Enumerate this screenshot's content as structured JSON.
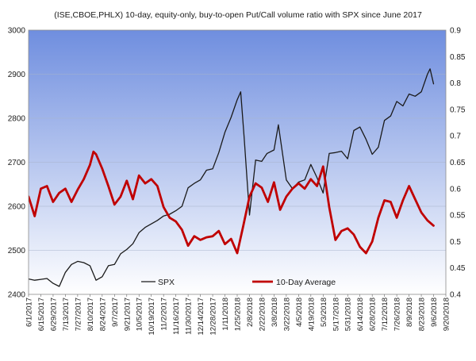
{
  "chart_data": {
    "type": "line",
    "title": "(ISE,CBOE,PHLX)  10-day, equity-only,  buy-to-open  Put/Call volume ratio with SPX since June 2017",
    "xlabel": "",
    "ylabel_left": "",
    "ylabel_right": "",
    "x_ticks": [
      "6/1/2017",
      "6/15/2017",
      "6/29/2017",
      "7/13/2017",
      "7/27/2017",
      "8/10/2017",
      "8/24/2017",
      "9/7/2017",
      "9/21/2017",
      "10/5/2017",
      "10/19/2017",
      "11/2/2017",
      "11/16/2017",
      "11/30/2017",
      "12/14/2017",
      "12/28/2017",
      "1/11/2018",
      "1/25/2018",
      "2/8/2018",
      "2/22/2018",
      "3/8/2018",
      "3/22/2018",
      "4/5/2018",
      "4/19/2018",
      "5/3/2018",
      "5/17/2018",
      "5/31/2018",
      "6/14/2018",
      "6/28/2018",
      "7/12/2018",
      "7/26/2018",
      "8/9/2018",
      "8/23/2018",
      "9/6/2018",
      "9/20/2018"
    ],
    "x_range": [
      "2017-06-01",
      "2018-09-20"
    ],
    "y_left_ticks": [
      2400,
      2500,
      2600,
      2700,
      2800,
      2900,
      3000
    ],
    "y_left_range": [
      2400,
      3000
    ],
    "y_right_ticks": [
      "0.4",
      "0.45",
      "0.5",
      "0.55",
      "0.6",
      "0.65",
      "0.7",
      "0.75",
      "0.8",
      "0.85",
      "0.9"
    ],
    "y_right_range": [
      0.4,
      0.9
    ],
    "grid": true,
    "legend_position": "bottom-center",
    "series": [
      {
        "name": "SPX",
        "axis": "left",
        "color": "#1a1a1a",
        "points": [
          [
            "2017-06-01",
            2435
          ],
          [
            "2017-06-08",
            2432
          ],
          [
            "2017-06-15",
            2434
          ],
          [
            "2017-06-22",
            2436
          ],
          [
            "2017-06-29",
            2425
          ],
          [
            "2017-07-06",
            2418
          ],
          [
            "2017-07-13",
            2450
          ],
          [
            "2017-07-20",
            2468
          ],
          [
            "2017-07-27",
            2475
          ],
          [
            "2017-08-03",
            2472
          ],
          [
            "2017-08-10",
            2465
          ],
          [
            "2017-08-17",
            2432
          ],
          [
            "2017-08-24",
            2440
          ],
          [
            "2017-08-31",
            2465
          ],
          [
            "2017-09-07",
            2468
          ],
          [
            "2017-09-14",
            2492
          ],
          [
            "2017-09-21",
            2502
          ],
          [
            "2017-09-28",
            2515
          ],
          [
            "2017-10-05",
            2540
          ],
          [
            "2017-10-12",
            2552
          ],
          [
            "2017-10-19",
            2560
          ],
          [
            "2017-10-26",
            2568
          ],
          [
            "2017-11-02",
            2578
          ],
          [
            "2017-11-09",
            2582
          ],
          [
            "2017-11-16",
            2590
          ],
          [
            "2017-11-23",
            2600
          ],
          [
            "2017-11-30",
            2642
          ],
          [
            "2017-12-07",
            2652
          ],
          [
            "2017-12-14",
            2660
          ],
          [
            "2017-12-21",
            2682
          ],
          [
            "2017-12-28",
            2685
          ],
          [
            "2018-01-04",
            2722
          ],
          [
            "2018-01-11",
            2768
          ],
          [
            "2018-01-18",
            2802
          ],
          [
            "2018-01-25",
            2842
          ],
          [
            "2018-01-29",
            2860
          ],
          [
            "2018-02-02",
            2755
          ],
          [
            "2018-02-08",
            2580
          ],
          [
            "2018-02-15",
            2705
          ],
          [
            "2018-02-22",
            2702
          ],
          [
            "2018-02-28",
            2720
          ],
          [
            "2018-03-08",
            2728
          ],
          [
            "2018-03-13",
            2785
          ],
          [
            "2018-03-22",
            2660
          ],
          [
            "2018-03-29",
            2640
          ],
          [
            "2018-04-05",
            2655
          ],
          [
            "2018-04-12",
            2660
          ],
          [
            "2018-04-19",
            2695
          ],
          [
            "2018-04-26",
            2665
          ],
          [
            "2018-05-03",
            2630
          ],
          [
            "2018-05-10",
            2720
          ],
          [
            "2018-05-17",
            2722
          ],
          [
            "2018-05-24",
            2725
          ],
          [
            "2018-05-31",
            2708
          ],
          [
            "2018-06-07",
            2772
          ],
          [
            "2018-06-14",
            2780
          ],
          [
            "2018-06-21",
            2752
          ],
          [
            "2018-06-28",
            2718
          ],
          [
            "2018-07-05",
            2734
          ],
          [
            "2018-07-12",
            2795
          ],
          [
            "2018-07-19",
            2805
          ],
          [
            "2018-07-26",
            2838
          ],
          [
            "2018-08-02",
            2828
          ],
          [
            "2018-08-09",
            2855
          ],
          [
            "2018-08-16",
            2850
          ],
          [
            "2018-08-23",
            2860
          ],
          [
            "2018-08-30",
            2900
          ],
          [
            "2018-09-02",
            2912
          ],
          [
            "2018-09-06",
            2878
          ]
        ]
      },
      {
        "name": "10-Day Average",
        "axis": "right",
        "color": "#c00000",
        "points": [
          [
            "2017-06-01",
            0.585
          ],
          [
            "2017-06-08",
            0.548
          ],
          [
            "2017-06-15",
            0.6
          ],
          [
            "2017-06-22",
            0.605
          ],
          [
            "2017-06-29",
            0.575
          ],
          [
            "2017-07-06",
            0.592
          ],
          [
            "2017-07-13",
            0.6
          ],
          [
            "2017-07-20",
            0.575
          ],
          [
            "2017-07-27",
            0.598
          ],
          [
            "2017-08-03",
            0.618
          ],
          [
            "2017-08-10",
            0.645
          ],
          [
            "2017-08-14",
            0.67
          ],
          [
            "2017-08-17",
            0.665
          ],
          [
            "2017-08-24",
            0.638
          ],
          [
            "2017-08-31",
            0.605
          ],
          [
            "2017-09-07",
            0.57
          ],
          [
            "2017-09-14",
            0.585
          ],
          [
            "2017-09-21",
            0.615
          ],
          [
            "2017-09-28",
            0.58
          ],
          [
            "2017-10-05",
            0.625
          ],
          [
            "2017-10-12",
            0.61
          ],
          [
            "2017-10-19",
            0.618
          ],
          [
            "2017-10-26",
            0.605
          ],
          [
            "2017-11-02",
            0.565
          ],
          [
            "2017-11-09",
            0.545
          ],
          [
            "2017-11-16",
            0.538
          ],
          [
            "2017-11-23",
            0.522
          ],
          [
            "2017-11-30",
            0.492
          ],
          [
            "2017-12-07",
            0.51
          ],
          [
            "2017-12-14",
            0.503
          ],
          [
            "2017-12-21",
            0.508
          ],
          [
            "2017-12-28",
            0.51
          ],
          [
            "2018-01-04",
            0.52
          ],
          [
            "2018-01-11",
            0.495
          ],
          [
            "2018-01-18",
            0.505
          ],
          [
            "2018-01-25",
            0.478
          ],
          [
            "2018-02-01",
            0.53
          ],
          [
            "2018-02-08",
            0.585
          ],
          [
            "2018-02-15",
            0.61
          ],
          [
            "2018-02-22",
            0.602
          ],
          [
            "2018-03-01",
            0.575
          ],
          [
            "2018-03-08",
            0.612
          ],
          [
            "2018-03-15",
            0.56
          ],
          [
            "2018-03-22",
            0.585
          ],
          [
            "2018-03-29",
            0.6
          ],
          [
            "2018-04-05",
            0.61
          ],
          [
            "2018-04-12",
            0.6
          ],
          [
            "2018-04-19",
            0.618
          ],
          [
            "2018-04-26",
            0.605
          ],
          [
            "2018-05-03",
            0.642
          ],
          [
            "2018-05-10",
            0.565
          ],
          [
            "2018-05-17",
            0.503
          ],
          [
            "2018-05-24",
            0.52
          ],
          [
            "2018-05-31",
            0.525
          ],
          [
            "2018-06-07",
            0.513
          ],
          [
            "2018-06-14",
            0.49
          ],
          [
            "2018-06-21",
            0.478
          ],
          [
            "2018-06-28",
            0.5
          ],
          [
            "2018-07-05",
            0.545
          ],
          [
            "2018-07-12",
            0.578
          ],
          [
            "2018-07-19",
            0.575
          ],
          [
            "2018-07-26",
            0.545
          ],
          [
            "2018-08-02",
            0.578
          ],
          [
            "2018-08-09",
            0.605
          ],
          [
            "2018-08-16",
            0.58
          ],
          [
            "2018-08-23",
            0.555
          ],
          [
            "2018-08-30",
            0.54
          ],
          [
            "2018-09-06",
            0.53
          ]
        ]
      }
    ]
  },
  "colors": {
    "plot_bg_top": "#6f8edf",
    "plot_bg_bottom": "#ffffff",
    "gridline": "#a8b4cc",
    "spx": "#1a1a1a",
    "avg": "#c00000"
  }
}
